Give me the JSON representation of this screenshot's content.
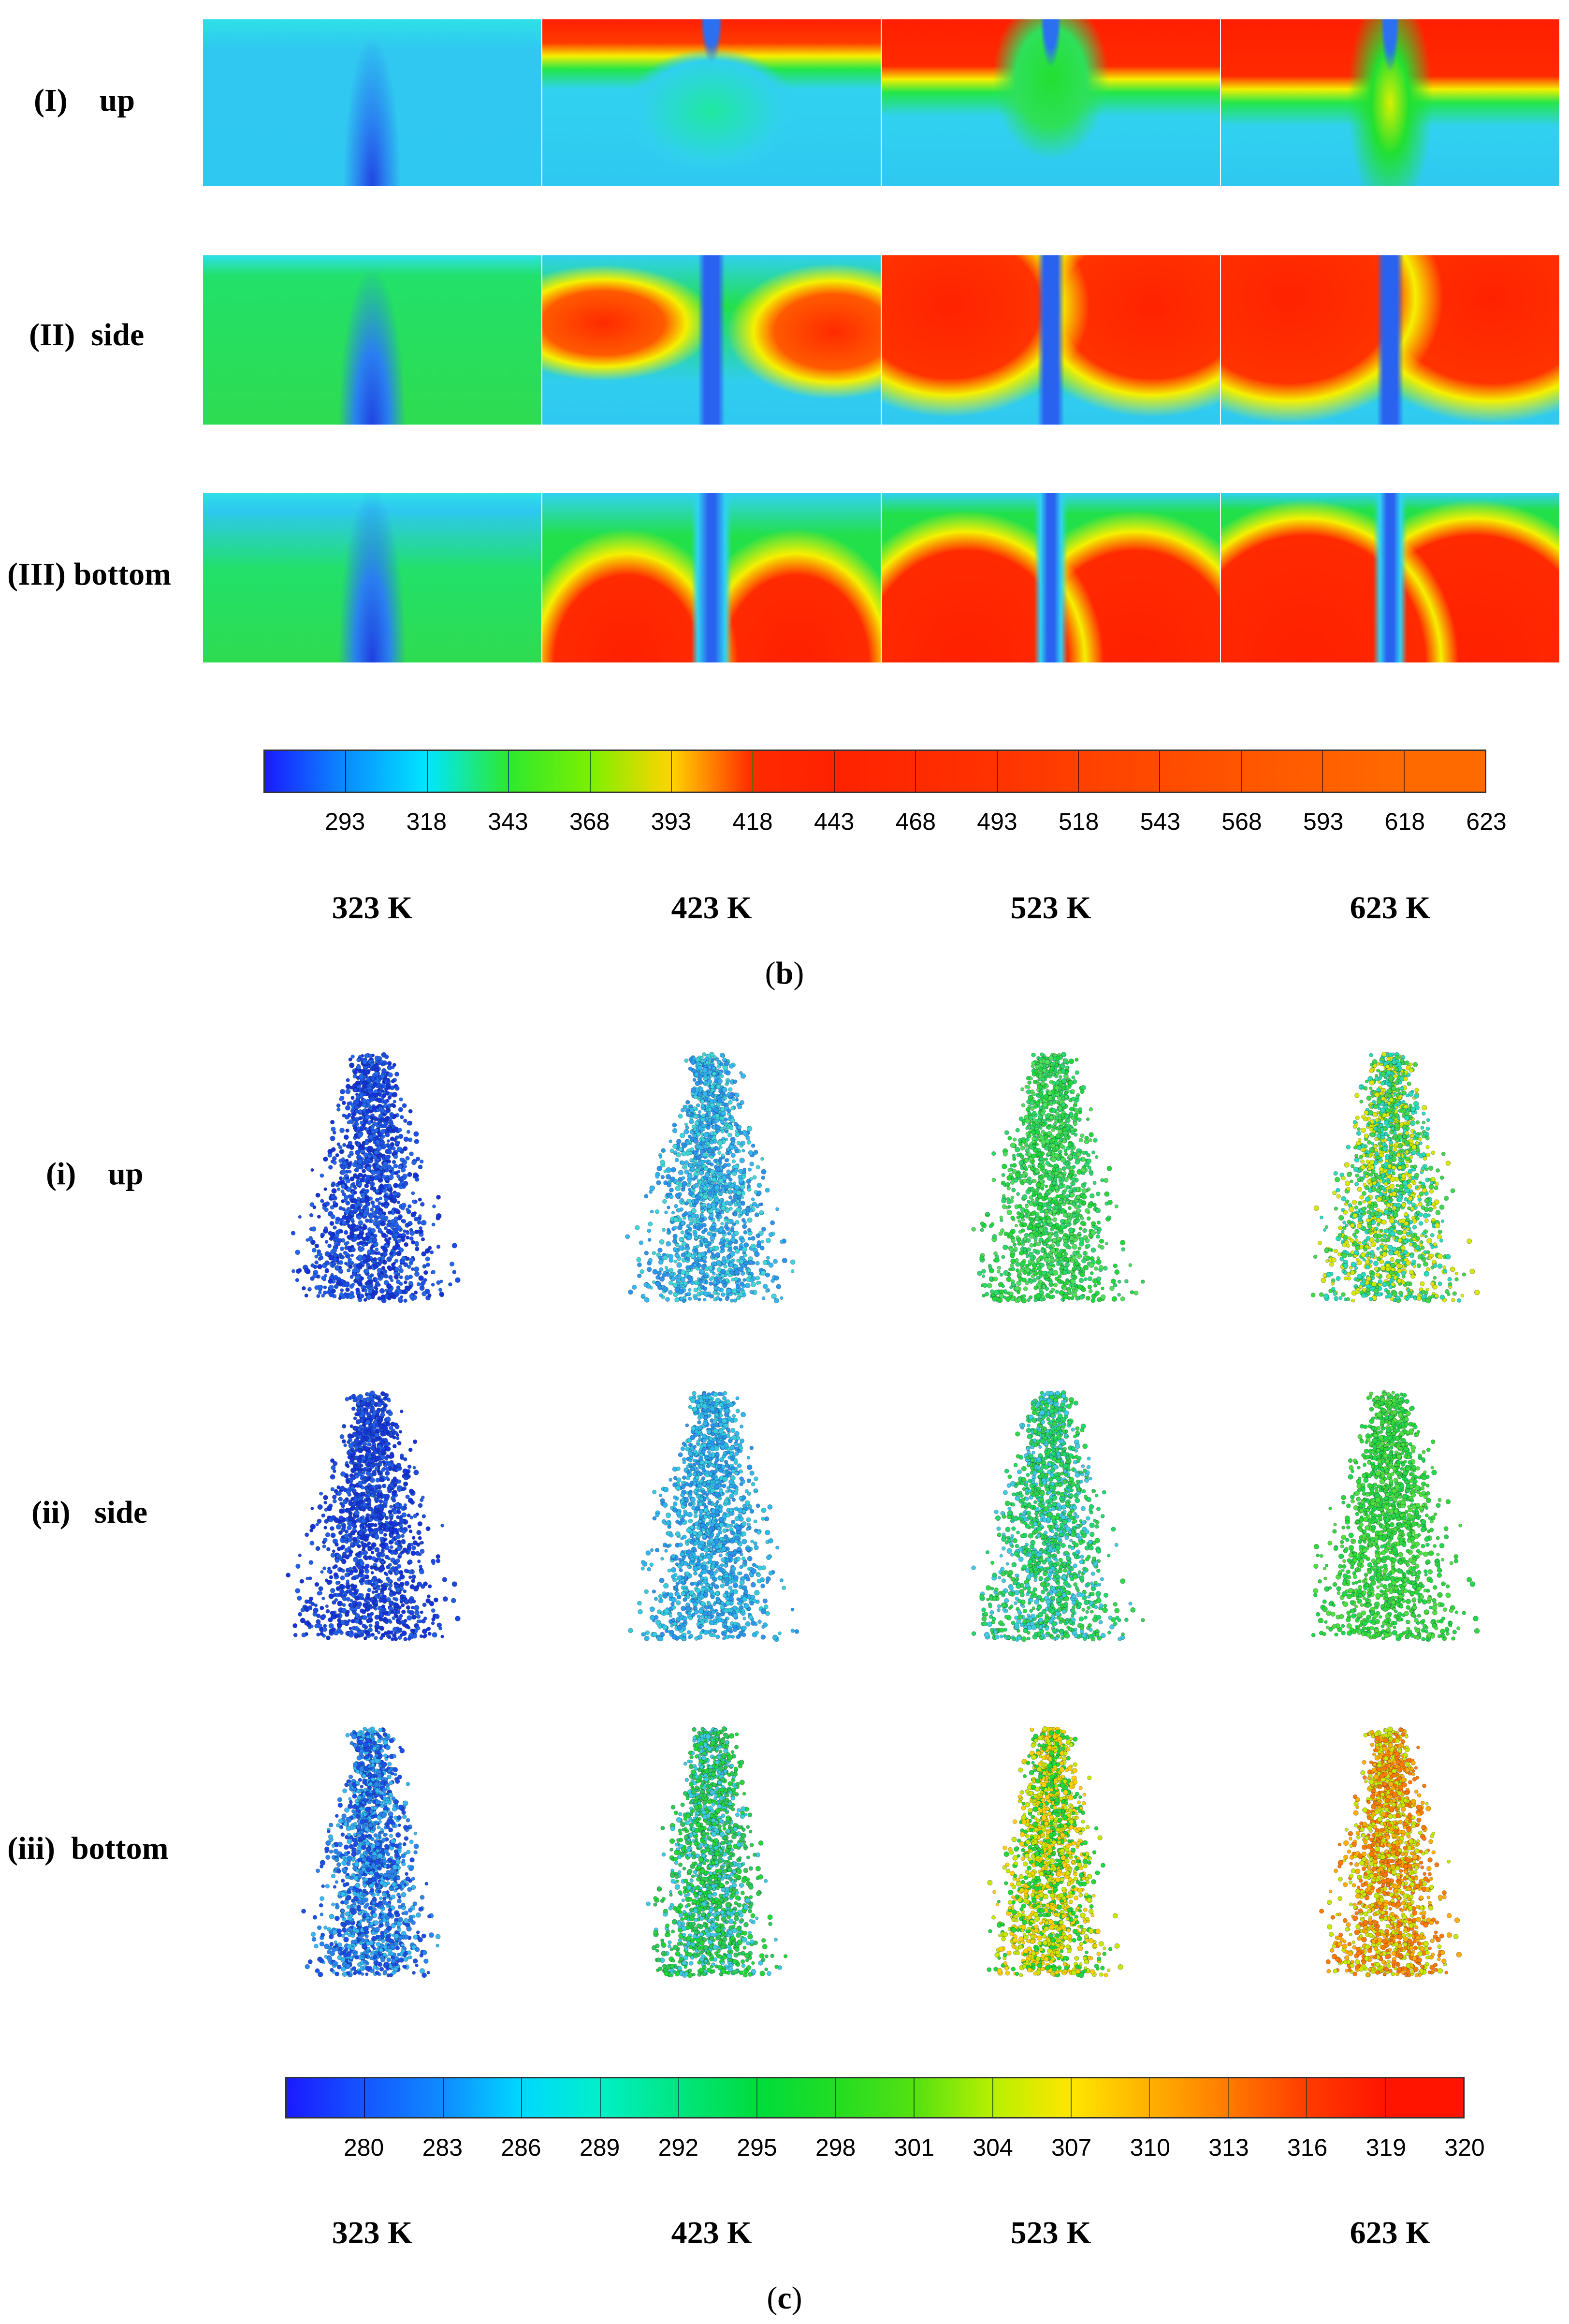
{
  "figure_b": {
    "row_labels": [
      "(I)    up",
      "(II)  side",
      "(III) bottom"
    ],
    "colorbar": {
      "ticks": [
        "293",
        "318",
        "343",
        "368",
        "393",
        "418",
        "443",
        "468",
        "493",
        "518",
        "543",
        "568",
        "593",
        "618",
        "623"
      ],
      "segment_colors": [
        "#1a1aff",
        "#0a8cff",
        "#00e6ff",
        "#2ee82e",
        "#7cf000",
        "#ffd400",
        "#ff2a00",
        "#ff2200",
        "#ff2a00",
        "#ff3300",
        "#ff4000",
        "#ff4a00",
        "#ff5500",
        "#ff5f00",
        "#ff6a00"
      ]
    },
    "columns": [
      "323 K",
      "423 K",
      "523 K",
      "623 K"
    ],
    "caption": "b"
  },
  "figure_c": {
    "row_labels": [
      "(i)    up",
      "(ii)   side",
      "(iii)  bottom"
    ],
    "colorbar": {
      "ticks": [
        "280",
        "283",
        "286",
        "289",
        "292",
        "295",
        "298",
        "301",
        "304",
        "307",
        "310",
        "313",
        "316",
        "319",
        "320"
      ],
      "segment_colors": [
        "#1a1aff",
        "#1456ff",
        "#0f8cff",
        "#00d8ff",
        "#00f0c8",
        "#00e680",
        "#00dc3c",
        "#22dc22",
        "#55e010",
        "#b8f000",
        "#ffe600",
        "#ffb000",
        "#ff7a00",
        "#ff3c00",
        "#ff1400"
      ]
    },
    "columns": [
      "323 K",
      "423 K",
      "523 K",
      "623 K"
    ],
    "caption": "c"
  },
  "colors": {
    "cold": "#1a2bd6",
    "cyan": "#27d0f0",
    "green": "#22e03a",
    "yellow": "#f2f000",
    "hot": "#ff2000"
  }
}
